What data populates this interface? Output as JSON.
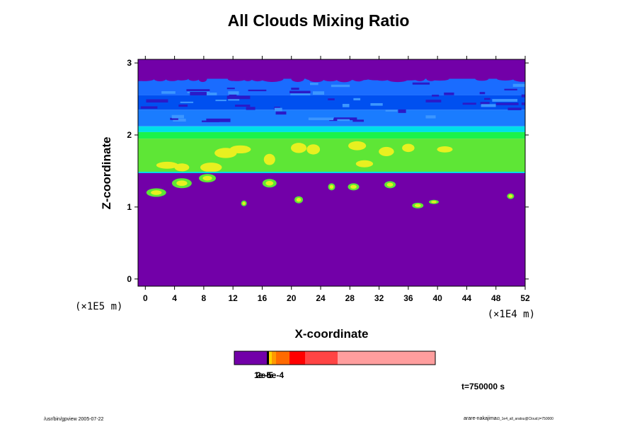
{
  "chart_data": {
    "type": "heatmap",
    "title": "All Clouds Mixing Ratio",
    "xlabel": "X-coordinate",
    "ylabel": "Z-coordinate",
    "x_unit": "(×1E4 m)",
    "y_unit": "(×1E5 m)",
    "xlim": [
      -1,
      52
    ],
    "ylim": [
      -0.1,
      3.05
    ],
    "xticks": [
      0,
      4,
      8,
      12,
      16,
      20,
      24,
      28,
      32,
      36,
      40,
      44,
      48,
      52
    ],
    "yticks": [
      0,
      1,
      2,
      3
    ],
    "bands": [
      {
        "z": [
          2.78,
          3.05
        ],
        "level": "background"
      },
      {
        "z": [
          2.55,
          2.78
        ],
        "level": "blue-high"
      },
      {
        "z": [
          2.35,
          2.55
        ],
        "level": "blue-mid"
      },
      {
        "z": [
          2.12,
          2.35
        ],
        "level": "blue-low"
      },
      {
        "z": [
          2.04,
          2.12
        ],
        "level": "cyan"
      },
      {
        "z": [
          1.95,
          2.04
        ],
        "level": "bright-green"
      },
      {
        "z": [
          1.48,
          1.95
        ],
        "level": "green"
      },
      {
        "z": [
          -0.1,
          1.48
        ],
        "level": "background"
      }
    ],
    "colorbar": {
      "colors": [
        "#7200a8",
        "#ffd400",
        "#ff9a00",
        "#ff6a00",
        "#ff0000",
        "#ff4444",
        "#ff9e9e"
      ],
      "tick_labels": [
        "1e-5",
        "2e-5",
        "5e-4"
      ]
    },
    "annotation": "t=750000 s"
  },
  "footer": {
    "left": "/usr/bin/gpview 2005-07-22",
    "right": "arare-nakajima",
    "right_small": "t3_1e4_all_aratsu@Cloud,t=750000"
  }
}
